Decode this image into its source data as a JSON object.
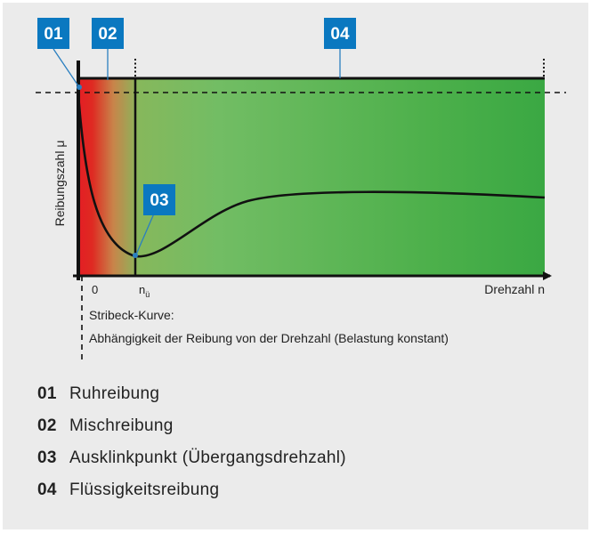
{
  "diagram": {
    "markers": {
      "m01": "01",
      "m02": "02",
      "m03": "03",
      "m04": "04"
    },
    "axis": {
      "y_label": "Reibungszahl μ",
      "x_label": "Drehzahl n",
      "tick_zero": "0",
      "tick_nu": "n",
      "tick_nu_sub": "ü"
    },
    "caption": {
      "line1": "Stribeck-Kurve:",
      "line2": "Abhängigkeit der Reibung von der Drehzahl (Belastung konstant)"
    },
    "colors": {
      "marker_box": "#0a78c0",
      "static_red": "#e02020",
      "mixed_orange": "#c8844a",
      "fluid_green": "#3aa843",
      "light_green": "#72bd64",
      "background": "#ebebeb"
    }
  },
  "legend": [
    {
      "num": "01",
      "label": "Ruhreibung"
    },
    {
      "num": "02",
      "label": "Mischreibung"
    },
    {
      "num": "03",
      "label": "Ausklinkpunkt (Übergangsdrehzahl)"
    },
    {
      "num": "04",
      "label": "Flüssigkeitsreibung"
    }
  ]
}
